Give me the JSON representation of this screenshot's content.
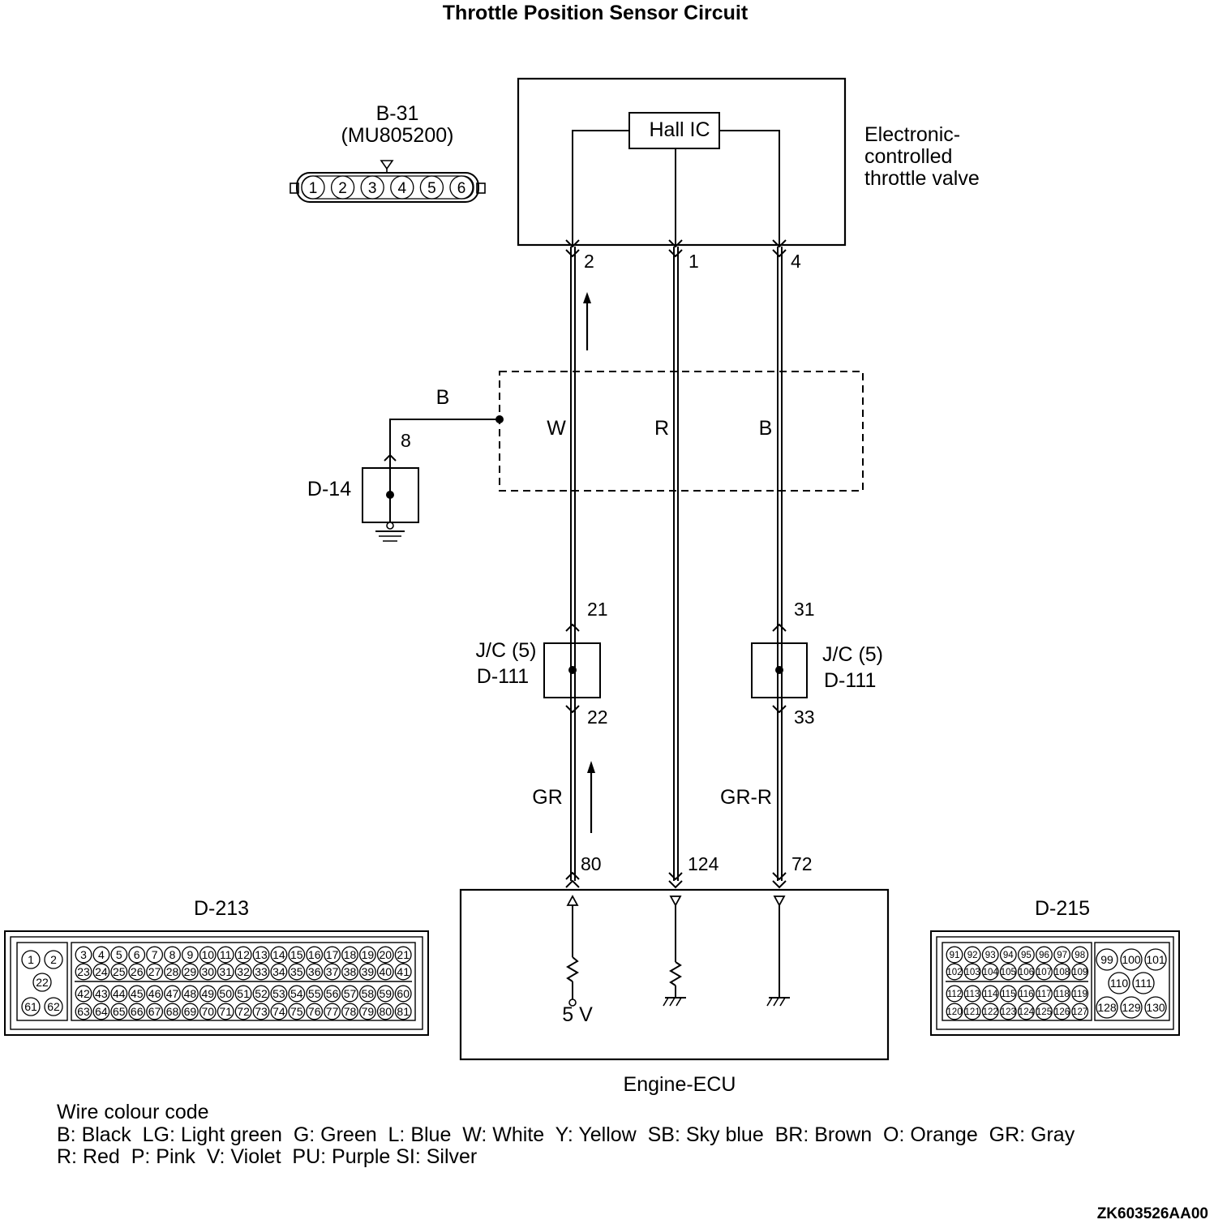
{
  "title": "Throttle Position Sensor Circuit",
  "b31": {
    "id": "B-31",
    "part": "(MU805200)",
    "pins": [
      "1",
      "2",
      "3",
      "4",
      "5",
      "6"
    ]
  },
  "throttle": {
    "label_lines": [
      "Electronic-",
      "controlled",
      "throttle valve"
    ],
    "ic": "Hall IC",
    "pins": [
      "2",
      "1",
      "4"
    ]
  },
  "ground_circuit": {
    "wire_color": "B",
    "pin": "8",
    "connector": "D-14"
  },
  "wire_colors_top": [
    "W",
    "R",
    "B"
  ],
  "jc_left": {
    "line1": "J/C (5)",
    "line2": "D-111",
    "pin_top": "21",
    "pin_bottom": "22"
  },
  "jc_right": {
    "line1": "J/C (5)",
    "line2": "D-111",
    "pin_top": "31",
    "pin_bottom": "33"
  },
  "wire_colors_bottom": {
    "left": "GR",
    "right": "GR-R"
  },
  "ecu": {
    "label": "Engine-ECU",
    "pins": [
      "80",
      "124",
      "72"
    ],
    "voltage": "5 V"
  },
  "d213": {
    "id": "D-213",
    "side_pins": [
      "1",
      "2",
      "22",
      "61",
      "62"
    ],
    "rows": [
      [
        "3",
        "4",
        "5",
        "6",
        "7",
        "8",
        "9",
        "10",
        "11",
        "12",
        "13",
        "14",
        "15",
        "16",
        "17",
        "18",
        "19",
        "20",
        "21"
      ],
      [
        "23",
        "24",
        "25",
        "26",
        "27",
        "28",
        "29",
        "30",
        "31",
        "32",
        "33",
        "34",
        "35",
        "36",
        "37",
        "38",
        "39",
        "40",
        "41"
      ],
      [
        "42",
        "43",
        "44",
        "45",
        "46",
        "47",
        "48",
        "49",
        "50",
        "51",
        "52",
        "53",
        "54",
        "55",
        "56",
        "57",
        "58",
        "59",
        "60"
      ],
      [
        "63",
        "64",
        "65",
        "66",
        "67",
        "68",
        "69",
        "70",
        "71",
        "72",
        "73",
        "74",
        "75",
        "76",
        "77",
        "78",
        "79",
        "80",
        "81"
      ]
    ]
  },
  "d215": {
    "id": "D-215",
    "rows": [
      [
        "91",
        "92",
        "93",
        "94",
        "95",
        "96",
        "97",
        "98"
      ],
      [
        "102",
        "103",
        "104",
        "105",
        "106",
        "107",
        "108",
        "109"
      ],
      [
        "112",
        "113",
        "114",
        "115",
        "116",
        "117",
        "118",
        "119"
      ],
      [
        "120",
        "121",
        "122",
        "123",
        "124",
        "125",
        "126",
        "127"
      ]
    ],
    "side_pins": [
      "99",
      "100",
      "101",
      "110",
      "111",
      "128",
      "129",
      "130"
    ]
  },
  "legend": {
    "heading": "Wire colour code",
    "line1": "B: Black  LG: Light green  G: Green  L: Blue  W: White  Y: Yellow  SB: Sky blue  BR: Brown  O: Orange  GR: Gray",
    "line2": "R: Red  P: Pink  V: Violet  PU: Purple SI: Silver"
  },
  "figure_code": "ZK603526AA00"
}
